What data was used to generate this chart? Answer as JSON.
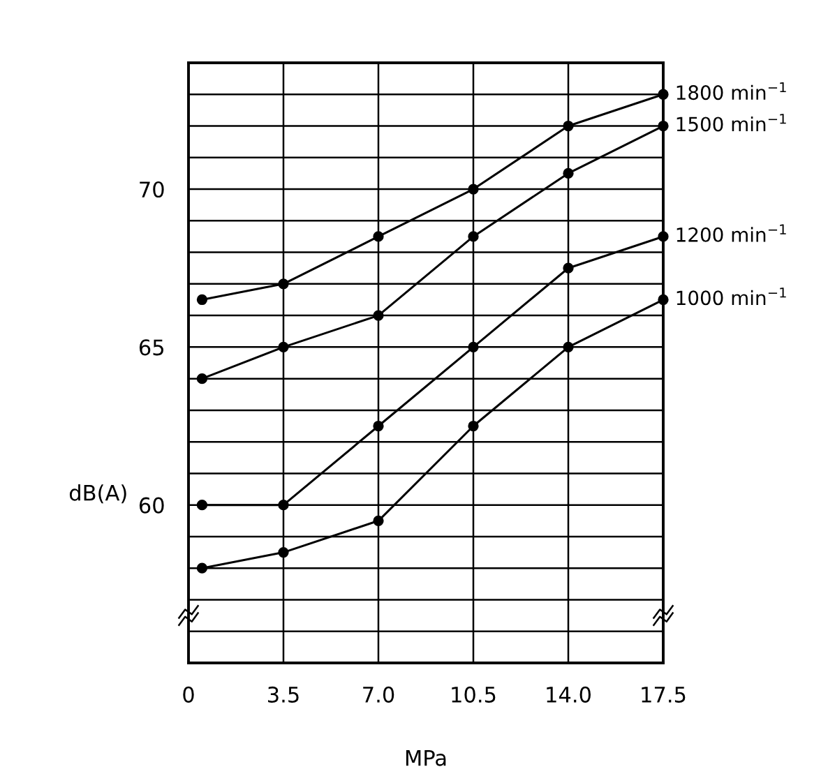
{
  "chart_data": {
    "type": "line",
    "xlabel": "MPa",
    "ylabel": "dB(A)",
    "x": [
      0.5,
      3.5,
      7.0,
      10.5,
      14.0,
      17.5
    ],
    "series": [
      {
        "name": "1800 min$^{−1}$",
        "color": "#000000",
        "values": [
          66.5,
          67,
          68.5,
          70,
          72,
          73
        ]
      },
      {
        "name": "1500 min$^{−1}$",
        "color": "#000000",
        "values": [
          64,
          65,
          66,
          68.5,
          70.5,
          72
        ]
      },
      {
        "name": "1200 min$^{−1}$",
        "color": "#000000",
        "values": [
          60,
          60,
          62.5,
          65,
          67.5,
          68.5
        ]
      },
      {
        "name": "1000 min$^{−1}$",
        "color": "#000000",
        "values": [
          58,
          58.5,
          59.5,
          62.5,
          65,
          66.5
        ]
      }
    ],
    "xlim": [
      0,
      17.5
    ],
    "xticks": [
      0,
      3.5,
      {
        "value": 7,
        "label": "7.0"
      },
      10.5,
      {
        "value": 14,
        "label": "14.0"
      },
      17.5
    ],
    "ylim": [
      55,
      74
    ],
    "yticks": [
      {
        "value": 55,
        "label": null
      },
      {
        "value": 56,
        "label": null
      },
      {
        "value": 57,
        "label": null
      },
      {
        "value": 58,
        "label": null
      },
      {
        "value": 59,
        "label": null
      },
      60,
      {
        "value": 61,
        "label": null
      },
      {
        "value": 62,
        "label": null
      },
      {
        "value": 63,
        "label": null
      },
      {
        "value": 64,
        "label": null
      },
      65,
      {
        "value": 66,
        "label": null
      },
      {
        "value": 67,
        "label": null
      },
      {
        "value": 68,
        "label": null
      },
      {
        "value": 69,
        "label": null
      },
      70,
      {
        "value": 71,
        "label": null
      },
      {
        "value": 72,
        "label": null
      },
      {
        "value": 73,
        "label": null
      },
      {
        "value": 74,
        "label": null
      }
    ],
    "grid": true,
    "legend": false,
    "marker": "circle",
    "line_style": "solid"
  }
}
